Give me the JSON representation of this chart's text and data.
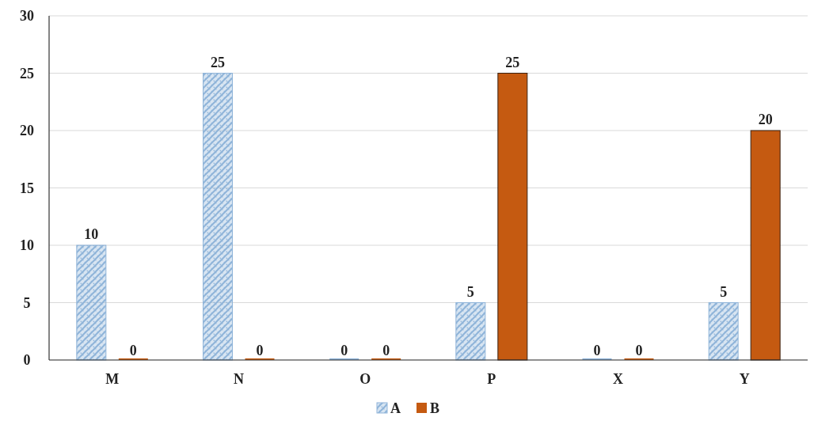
{
  "chart_data": {
    "type": "bar",
    "categories": [
      "M",
      "N",
      "O",
      "P",
      "X",
      "Y"
    ],
    "series": [
      {
        "name": "A",
        "color": "#8fb4d9",
        "values": [
          10,
          25,
          0,
          5,
          0,
          5
        ]
      },
      {
        "name": "B",
        "color": "#c55a11",
        "values": [
          0,
          0,
          0,
          25,
          0,
          20
        ]
      }
    ],
    "ylim": [
      0,
      30
    ],
    "yticks": [
      0,
      5,
      10,
      15,
      20,
      25,
      30
    ],
    "grid": "y",
    "legend": "bottom",
    "data_labels": true
  }
}
